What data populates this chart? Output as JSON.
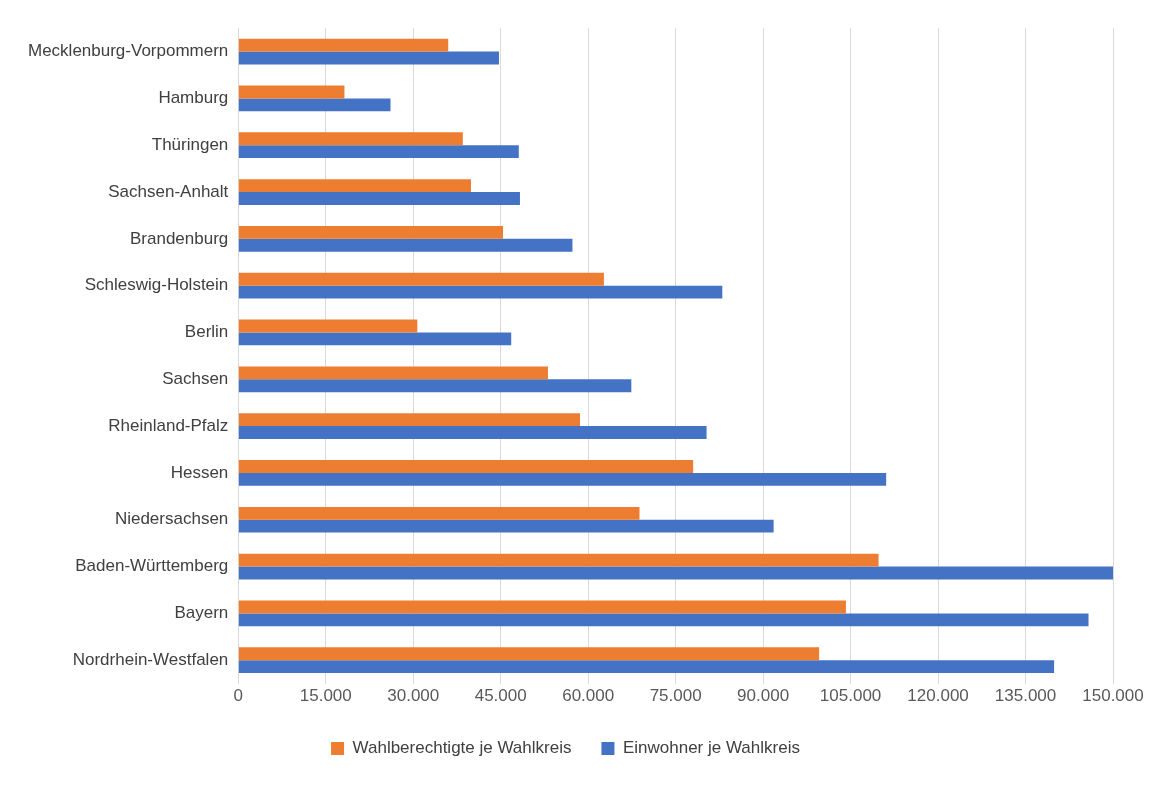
{
  "chart_data": {
    "type": "bar",
    "orientation": "horizontal",
    "categories": [
      "Mecklenburg-Vorpommern",
      "Hamburg",
      "Thüringen",
      "Sachsen-Anhalt",
      "Brandenburg",
      "Schleswig-Holstein",
      "Berlin",
      "Sachsen",
      "Rheinland-Pfalz",
      "Hessen",
      "Niedersachsen",
      "Baden-Württemberg",
      "Bayern",
      "Nordrhein-Westfalen"
    ],
    "series": [
      {
        "name": "Wahlberechtigte je Wahlkreis",
        "color": "#ed7d31",
        "values": [
          36000,
          18200,
          38500,
          39900,
          45400,
          62700,
          30700,
          53100,
          58600,
          78000,
          68800,
          109800,
          104200,
          99600
        ]
      },
      {
        "name": "Einwohner je Wahlkreis",
        "color": "#4472c4",
        "values": [
          44700,
          26100,
          48100,
          48300,
          57300,
          83000,
          46800,
          67400,
          80300,
          111100,
          91800,
          150000,
          145800,
          139900
        ]
      }
    ],
    "xlim": [
      0,
      150000
    ],
    "xticks": [
      0,
      {
        "value": 15000,
        "label": "15.000"
      },
      {
        "value": 30000,
        "label": "30.000"
      },
      {
        "value": 45000,
        "label": "45.000"
      },
      {
        "value": 60000,
        "label": "60.000"
      },
      {
        "value": 75000,
        "label": "75.000"
      },
      {
        "value": 90000,
        "label": "90.000"
      },
      {
        "value": 105000,
        "label": "105.000"
      },
      {
        "value": 120000,
        "label": "120.000"
      },
      {
        "value": 135000,
        "label": "135.000"
      },
      {
        "value": 150000,
        "label": "150.000"
      }
    ],
    "grid": "x",
    "legend": "bottom"
  }
}
